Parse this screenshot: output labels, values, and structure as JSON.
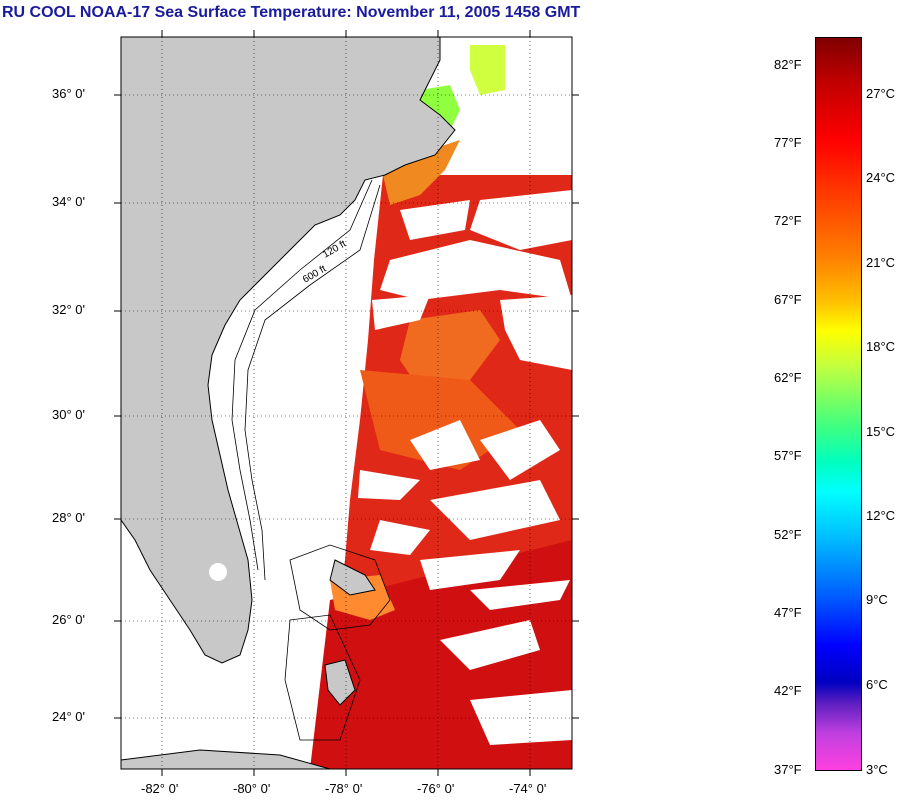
{
  "title": "RU COOL  NOAA-17  Sea Surface Temperature:  November 11, 2005 1458 GMT",
  "lat_labels": [
    "36° 0'",
    "34° 0'",
    "32° 0'",
    "30° 0'",
    "28° 0'",
    "26° 0'",
    "24° 0'"
  ],
  "lon_labels": [
    "-82° 0'",
    "-80° 0'",
    "-78° 0'",
    "-76° 0'",
    "-74° 0'"
  ],
  "isobath_labels": [
    "120 ft",
    "600 ft"
  ],
  "colorbar": {
    "fahrenheit": [
      "82°F",
      "77°F",
      "72°F",
      "67°F",
      "62°F",
      "57°F",
      "52°F",
      "47°F",
      "42°F",
      "37°F"
    ],
    "celsius": [
      "27°C",
      "24°C",
      "21°C",
      "18°C",
      "15°C",
      "12°C",
      "9°C",
      "6°C",
      "3°C"
    ]
  },
  "colors": {
    "land": "#c8c8c8",
    "title": "#1a1a9c",
    "warm": "#e02010",
    "orange": "#ff8020",
    "green": "#90ff40"
  }
}
